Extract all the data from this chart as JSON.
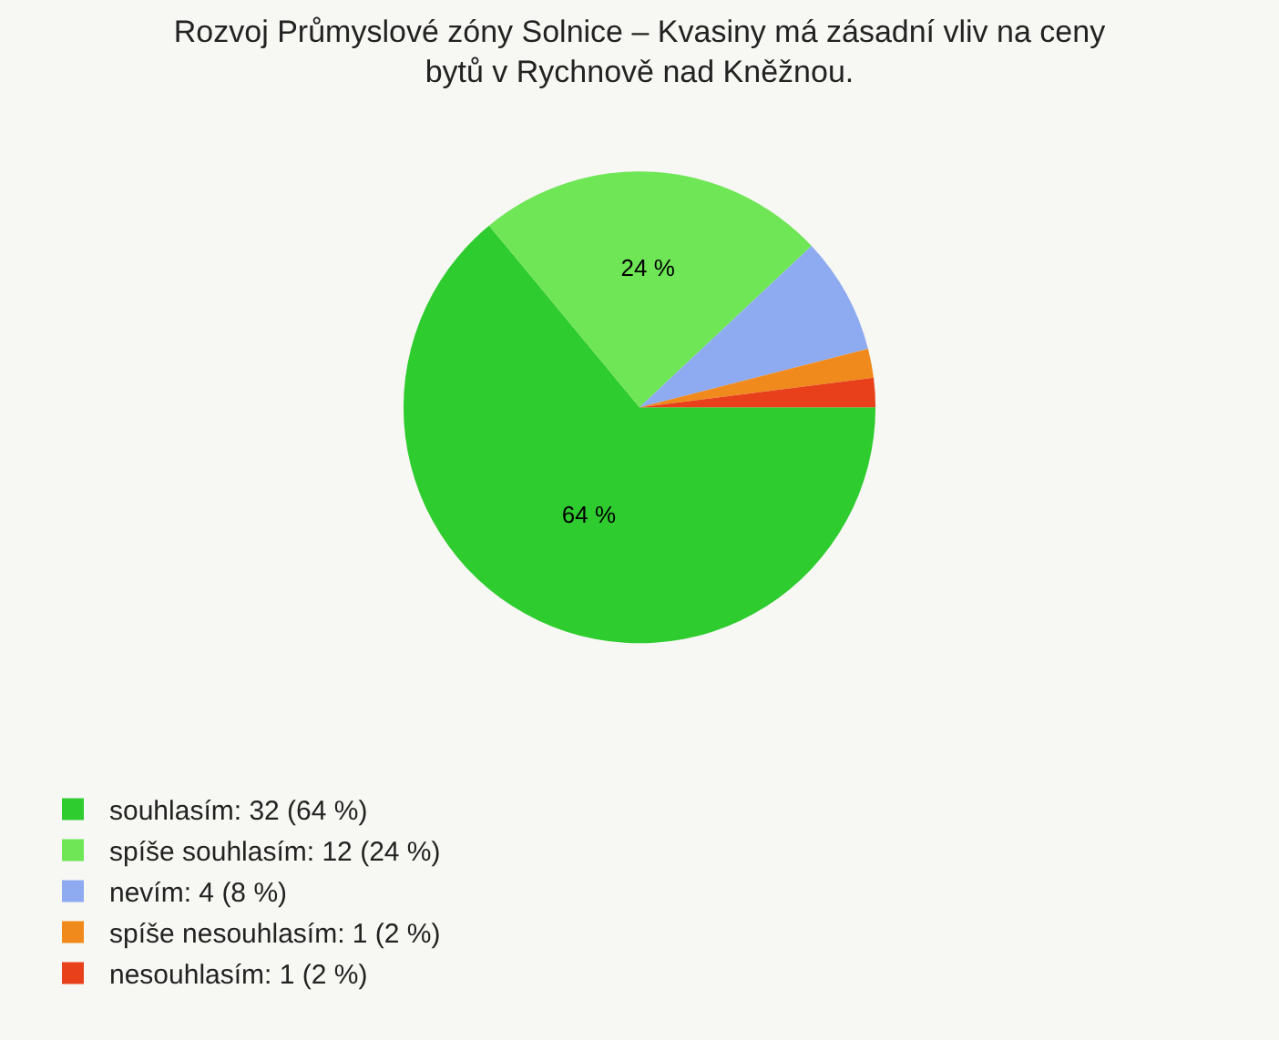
{
  "chart_data": {
    "type": "pie",
    "title": "Rozvoj Průmyslové zóny Solnice – Kvasiny má zásadní vliv na ceny\nbytů v Rychnově nad Kněžnou.",
    "categories": [
      "souhlasím: 32 (64 %)",
      "spíše souhlasím: 12 (24 %)",
      "nevím: 4 (8 %)",
      "spíše nesouhlasím: 1 (2 %)",
      "nesouhlasím: 1 (2 %)"
    ],
    "values": [
      64,
      24,
      8,
      2,
      2
    ],
    "colors": [
      "#2ecc2e",
      "#6ee655",
      "#8eaaf0",
      "#f08a1c",
      "#e8401a"
    ],
    "value_labels": [
      "64 %",
      "24 %",
      null,
      null,
      null
    ],
    "legend": "bottom left"
  }
}
